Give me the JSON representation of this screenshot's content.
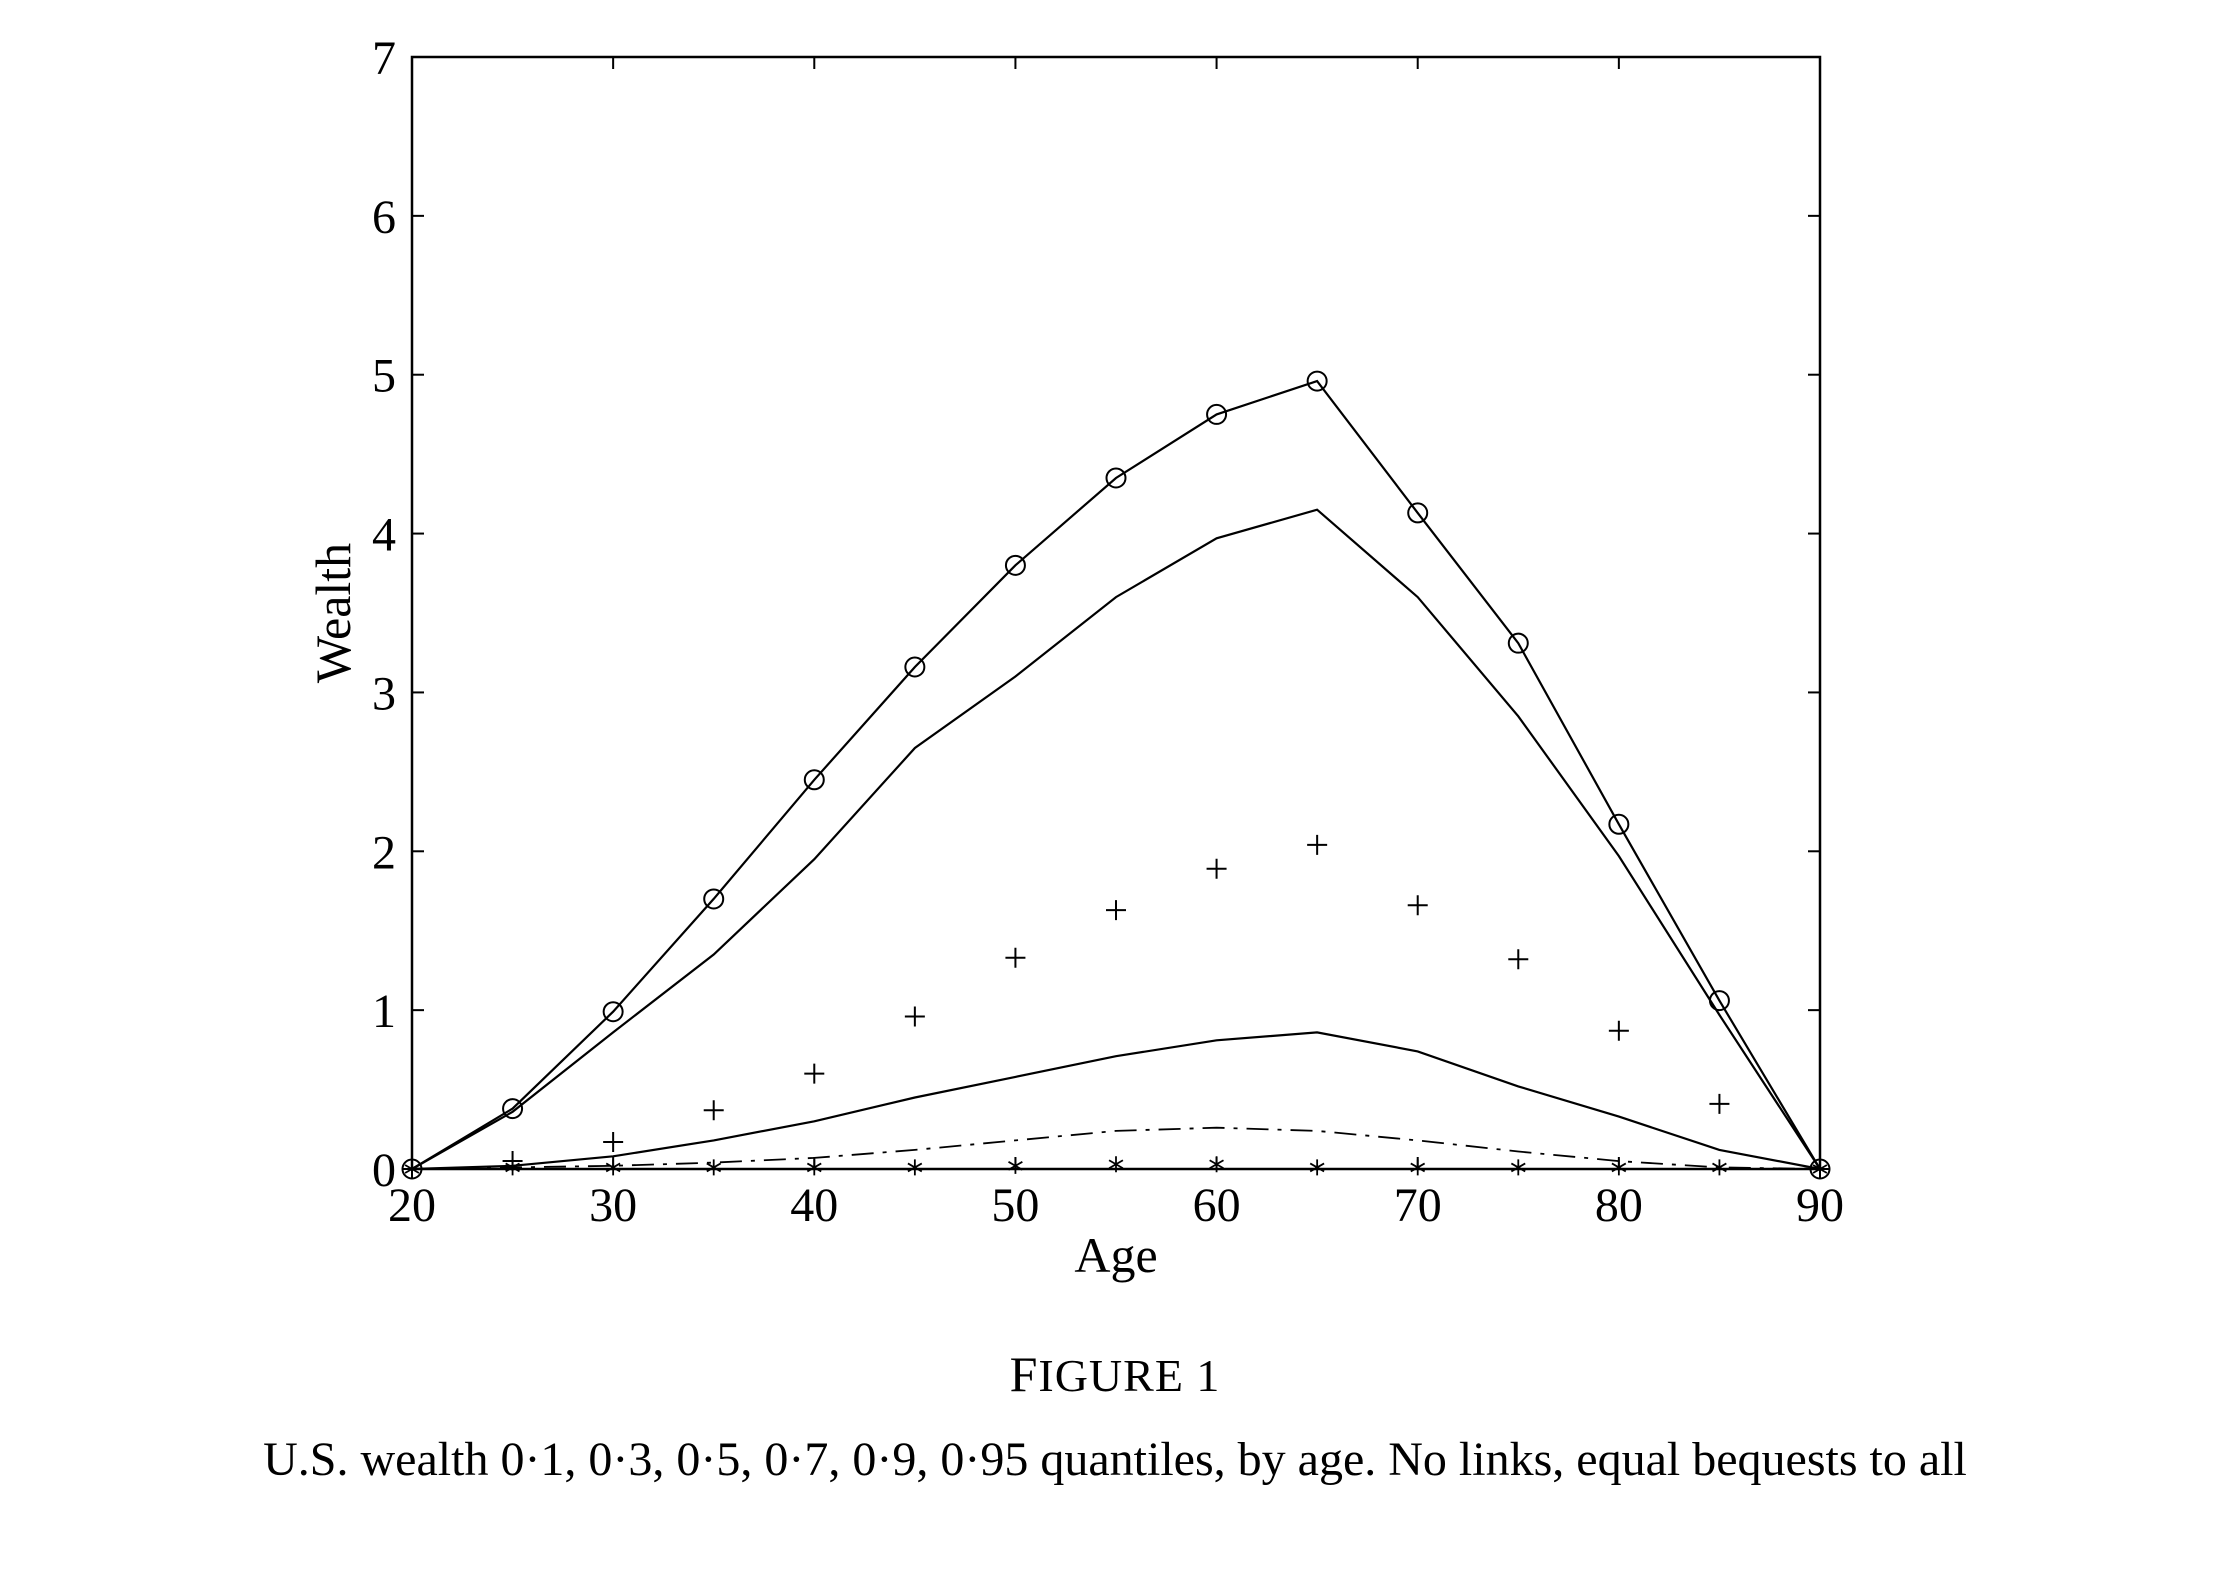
{
  "figure": {
    "label": "FIGURE 1",
    "caption": "U.S. wealth 0·1, 0·3, 0·5, 0·7, 0·9, 0·95 quantiles, by age. No links, equal bequests to all"
  },
  "chart_data": {
    "type": "line",
    "title": "",
    "xlabel": "Age",
    "ylabel": "Wealth",
    "xlim": [
      20,
      90
    ],
    "ylim": [
      0,
      7
    ],
    "xticks": [
      20,
      30,
      40,
      50,
      60,
      70,
      80,
      90
    ],
    "yticks": [
      0,
      1,
      2,
      3,
      4,
      5,
      6,
      7
    ],
    "grid": false,
    "legend": "none",
    "x": [
      20,
      25,
      30,
      35,
      40,
      45,
      50,
      55,
      60,
      65,
      70,
      75,
      80,
      85,
      90
    ],
    "series": [
      {
        "style": "solid-circle",
        "values": [
          0,
          0.38,
          0.99,
          1.7,
          2.45,
          3.16,
          3.8,
          4.35,
          4.75,
          4.96,
          4.13,
          3.31,
          2.17,
          1.06,
          0
        ]
      },
      {
        "style": "solid",
        "values": [
          0,
          0.36,
          0.86,
          1.35,
          1.95,
          2.65,
          3.1,
          3.6,
          3.97,
          4.15,
          3.6,
          2.85,
          1.97,
          0.97,
          0
        ]
      },
      {
        "style": "plus",
        "values": [
          0,
          0.05,
          0.17,
          0.37,
          0.6,
          0.96,
          1.33,
          1.63,
          1.89,
          2.04,
          1.66,
          1.32,
          0.87,
          0.41,
          0
        ]
      },
      {
        "style": "solid",
        "values": [
          0,
          0.02,
          0.08,
          0.18,
          0.3,
          0.45,
          0.58,
          0.71,
          0.81,
          0.86,
          0.74,
          0.52,
          0.33,
          0.12,
          0
        ]
      },
      {
        "style": "dash-dot",
        "values": [
          0,
          0.01,
          0.02,
          0.04,
          0.07,
          0.12,
          0.18,
          0.24,
          0.26,
          0.24,
          0.18,
          0.11,
          0.05,
          0.01,
          0
        ]
      },
      {
        "style": "star",
        "values": [
          0,
          0.01,
          0.01,
          0.01,
          0.01,
          0.01,
          0.02,
          0.03,
          0.03,
          0.01,
          0.01,
          0.01,
          0.01,
          0.01,
          0
        ]
      }
    ]
  }
}
